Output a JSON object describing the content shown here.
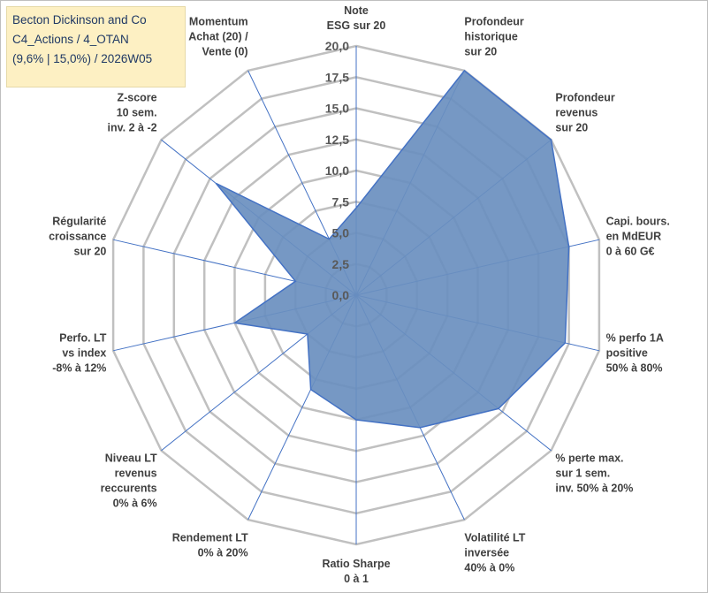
{
  "chart_data": {
    "type": "radar",
    "title": [
      "Becton Dickinson and Co",
      "C4_Actions / 4_OTAN",
      "(9,6% | 15,0%) / 2026W05"
    ],
    "rlim": [
      0,
      20
    ],
    "ticks": [
      "0,0",
      "2,5",
      "5,0",
      "7,5",
      "10,0",
      "12,5",
      "15,0",
      "17,5",
      "20,0"
    ],
    "categories": [
      [
        "Note",
        "ESG sur 20"
      ],
      [
        "Profondeur",
        "historique",
        "sur 20"
      ],
      [
        "Profondeur",
        "revenus",
        "sur 20"
      ],
      [
        "Capi. bours.",
        "en MdEUR",
        "0 à 60 G€"
      ],
      [
        "% perfo 1A",
        "positive",
        "50% à 80%"
      ],
      [
        "% perte max.",
        "sur 1 sem.",
        "inv. 50% à 20%"
      ],
      [
        "Volatilité LT",
        "inversée",
        "40% à 0%"
      ],
      [
        "Ratio Sharpe",
        "0 à 1"
      ],
      [
        "Rendement LT",
        "0% à 20%"
      ],
      [
        "Niveau LT",
        "revenus",
        "reccurents",
        "0% à 6%"
      ],
      [
        "Perfo. LT",
        "vs index",
        "-8% à 12%"
      ],
      [
        "Régularité",
        "croissance",
        "sur 20"
      ],
      [
        "Z-score",
        "10 sem.",
        "inv. 2 à -2"
      ],
      [
        "Momentum",
        "Achat (20) /",
        "Vente (0)"
      ]
    ],
    "series": [
      {
        "name": "Becton Dickinson and Co",
        "values": [
          7.0,
          20.0,
          20.0,
          17.5,
          17.2,
          14.6,
          11.8,
          10.0,
          8.4,
          5.0,
          10.0,
          5.0,
          14.4,
          5.0
        ]
      }
    ],
    "colors": {
      "fill": "#6a8fbf",
      "stroke": "#4472c4",
      "grid": "#c0c0c0",
      "spoke": "#4472c4"
    }
  }
}
